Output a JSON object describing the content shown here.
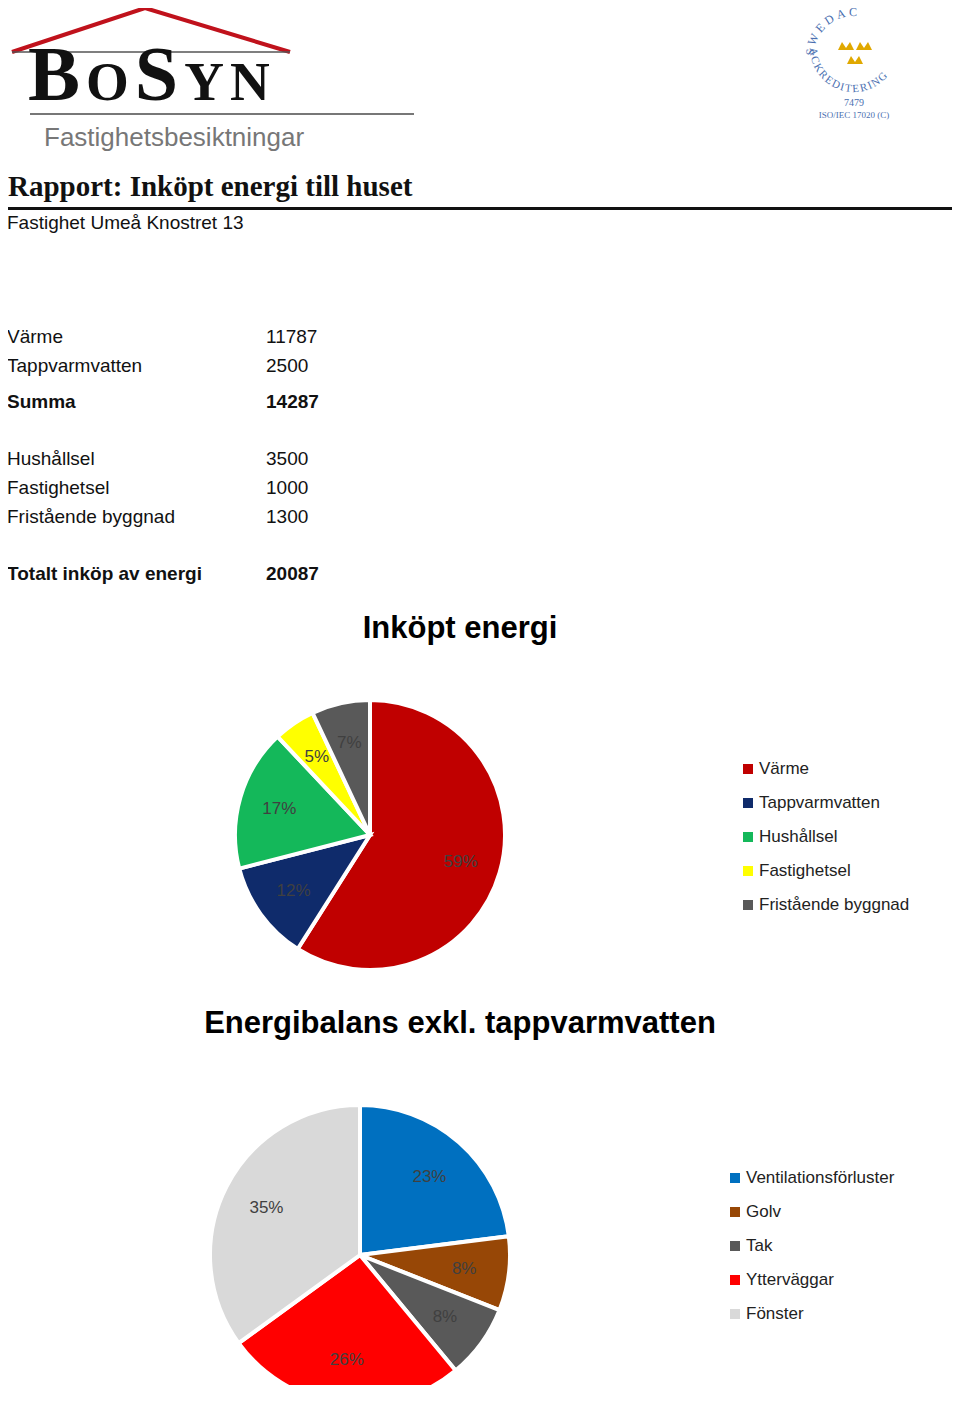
{
  "header": {
    "logo": "BoSyn",
    "logo_subtitle": "Fastighetsbesiktningar",
    "badge": {
      "arc_top": "SWEDAC",
      "arc_bottom": "ACKREDITERING",
      "number": "7479",
      "standard": "ISO/IEC 17020 (C)"
    }
  },
  "title": "Rapport: Inköpt energi till huset",
  "subtitle": "Fastighet Umeå Knostret 13",
  "table": {
    "groups": [
      {
        "rows": [
          [
            "Värme",
            11787
          ],
          [
            "Tappvarmvatten",
            2500
          ]
        ],
        "total": [
          "Summa",
          14287
        ]
      },
      {
        "rows": [
          [
            "Hushållsel",
            3500
          ],
          [
            "Fastighetsel",
            1000
          ],
          [
            "Fristående byggnad",
            1300
          ]
        ]
      },
      {
        "rows": [],
        "total": [
          "Totalt inköp av energi",
          20087
        ]
      }
    ]
  },
  "chart_data": [
    {
      "type": "pie",
      "title": "Inköpt energi",
      "categories": [
        "Värme",
        "Tappvarmvatten",
        "Hushållsel",
        "Fastighetsel",
        "Fristående byggnad"
      ],
      "values": [
        59,
        12,
        17,
        5,
        7
      ],
      "value_labels": [
        "59%",
        "12%",
        "17%",
        "5%",
        "7%"
      ],
      "colors": [
        "#c00000",
        "#0f2b6b",
        "#14b85a",
        "#ffff00",
        "#595959"
      ],
      "data_labels": true,
      "legend": "right"
    },
    {
      "type": "pie",
      "title": "Energibalans exkl. tappvarmvatten",
      "categories": [
        "Ventilationsförluster",
        "Golv",
        "Tak",
        "Ytterväggar",
        "Fönster"
      ],
      "values": [
        23,
        8,
        8,
        26,
        35
      ],
      "value_labels": [
        "23%",
        "8%",
        "8%",
        "26%",
        "35%"
      ],
      "colors": [
        "#0070c0",
        "#974706",
        "#595959",
        "#ff0000",
        "#d9d9d9"
      ],
      "data_labels": true,
      "legend": "right"
    }
  ]
}
